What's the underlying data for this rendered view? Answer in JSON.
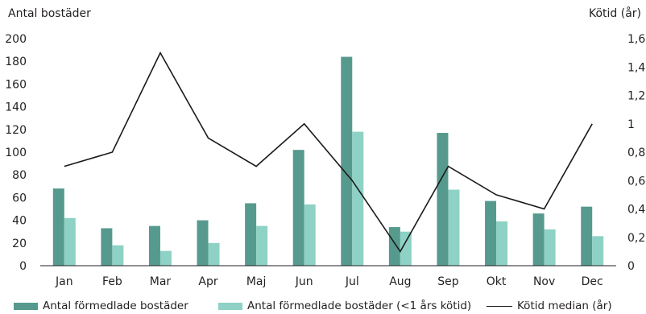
{
  "chart_data": {
    "type": "bar",
    "categories": [
      "Jan",
      "Feb",
      "Mar",
      "Apr",
      "Maj",
      "Jun",
      "Jul",
      "Aug",
      "Sep",
      "Okt",
      "Nov",
      "Dec"
    ],
    "series": [
      {
        "name": "Antal förmedlade bostäder",
        "type": "bar",
        "axis": "left",
        "color": "#569a8e",
        "values": [
          68,
          33,
          35,
          40,
          55,
          102,
          184,
          34,
          117,
          57,
          46,
          52
        ]
      },
      {
        "name": "Antal förmedlade bostäder (<1 års kötid)",
        "type": "bar",
        "axis": "left",
        "color": "#8ed1c5",
        "values": [
          42,
          18,
          13,
          20,
          35,
          54,
          118,
          30,
          67,
          39,
          32,
          26
        ]
      },
      {
        "name": "Kötid median (år)",
        "type": "line",
        "axis": "right",
        "color": "#1a1a1a",
        "values": [
          0.7,
          0.8,
          1.5,
          0.9,
          0.7,
          1.0,
          0.6,
          0.1,
          0.7,
          0.5,
          0.4,
          1.0
        ]
      }
    ],
    "ylabel": "Antal bostäder",
    "ylabel_right": "Kötid (år)",
    "ylim": [
      0,
      200
    ],
    "ylim_right": [
      0,
      1.6
    ],
    "yticks": [
      "0",
      "20",
      "40",
      "60",
      "80",
      "100",
      "120",
      "140",
      "160",
      "180",
      "200"
    ],
    "yticks_right": [
      "0",
      "0,2",
      "0,4",
      "0,6",
      "0,8",
      "1",
      "1,2",
      "1,4",
      "1,6"
    ],
    "grid": false,
    "legend_position": "bottom"
  }
}
